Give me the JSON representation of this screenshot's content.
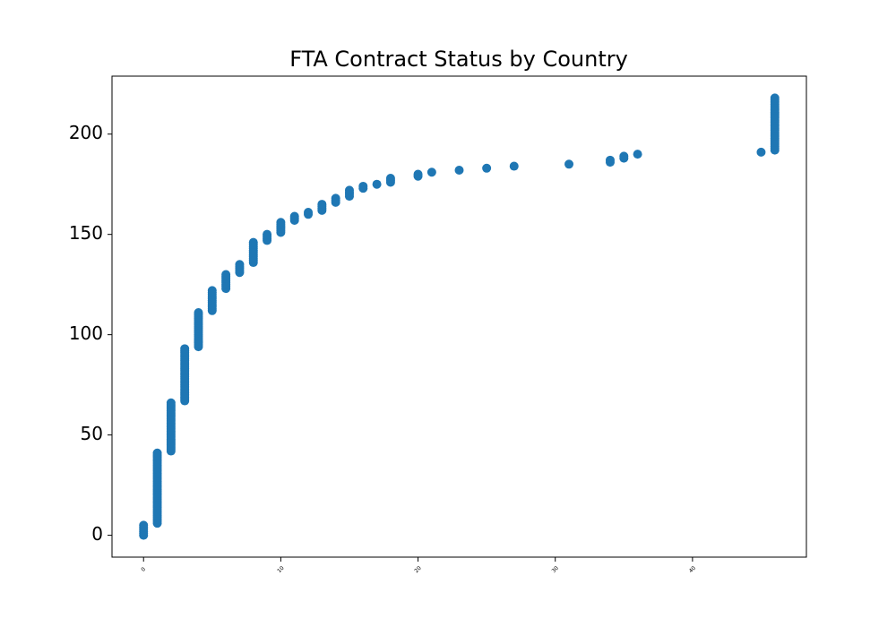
{
  "chart_data": {
    "type": "scatter",
    "title": "FTA Contract Status by Country",
    "color": "#1f77b4",
    "xlim": [
      -2.3,
      48.3
    ],
    "xticks": [
      0,
      10,
      20,
      30,
      40
    ],
    "ylim": [
      -10.9,
      228.9
    ],
    "yticks": [
      0,
      50,
      100,
      150,
      200
    ],
    "grid": false,
    "x": [
      0,
      0,
      0,
      0,
      0,
      0,
      1,
      1,
      1,
      1,
      1,
      1,
      1,
      1,
      1,
      1,
      1,
      1,
      1,
      1,
      1,
      1,
      1,
      1,
      1,
      1,
      1,
      1,
      1,
      1,
      1,
      1,
      1,
      1,
      1,
      1,
      1,
      1,
      1,
      1,
      1,
      1,
      2,
      2,
      2,
      2,
      2,
      2,
      2,
      2,
      2,
      2,
      2,
      2,
      2,
      2,
      2,
      2,
      2,
      2,
      2,
      2,
      2,
      2,
      2,
      2,
      2,
      3,
      3,
      3,
      3,
      3,
      3,
      3,
      3,
      3,
      3,
      3,
      3,
      3,
      3,
      3,
      3,
      3,
      3,
      3,
      3,
      3,
      3,
      3,
      3,
      3,
      3,
      3,
      4,
      4,
      4,
      4,
      4,
      4,
      4,
      4,
      4,
      4,
      4,
      4,
      4,
      4,
      4,
      4,
      4,
      4,
      5,
      5,
      5,
      5,
      5,
      5,
      5,
      5,
      5,
      5,
      5,
      6,
      6,
      6,
      6,
      6,
      6,
      6,
      6,
      7,
      7,
      7,
      7,
      7,
      8,
      8,
      8,
      8,
      8,
      8,
      8,
      8,
      8,
      8,
      8,
      9,
      9,
      9,
      9,
      10,
      10,
      10,
      10,
      10,
      10,
      11,
      11,
      11,
      12,
      12,
      13,
      13,
      13,
      13,
      14,
      14,
      14,
      15,
      15,
      15,
      15,
      16,
      16,
      17,
      18,
      18,
      18,
      20,
      20,
      21,
      23,
      25,
      27,
      31,
      34,
      34,
      35,
      35,
      36,
      45,
      46,
      46,
      46,
      46,
      46,
      46,
      46,
      46,
      46,
      46,
      46,
      46,
      46,
      46,
      46,
      46,
      46,
      46,
      46,
      46,
      46,
      46,
      46,
      46,
      46,
      46,
      46
    ],
    "y": [
      0,
      1,
      2,
      3,
      4,
      5,
      6,
      7,
      8,
      9,
      10,
      11,
      12,
      13,
      14,
      15,
      16,
      17,
      18,
      19,
      20,
      21,
      22,
      23,
      24,
      25,
      26,
      27,
      28,
      29,
      30,
      31,
      32,
      33,
      34,
      35,
      36,
      37,
      38,
      39,
      40,
      41,
      42,
      43,
      44,
      45,
      46,
      47,
      48,
      49,
      50,
      51,
      52,
      53,
      54,
      55,
      56,
      57,
      58,
      59,
      60,
      61,
      62,
      63,
      64,
      65,
      66,
      67,
      68,
      69,
      70,
      71,
      72,
      73,
      74,
      75,
      76,
      77,
      78,
      79,
      80,
      81,
      82,
      83,
      84,
      85,
      86,
      87,
      88,
      89,
      90,
      91,
      92,
      93,
      94,
      95,
      96,
      97,
      98,
      99,
      100,
      101,
      102,
      103,
      104,
      105,
      106,
      107,
      108,
      109,
      110,
      111,
      112,
      113,
      114,
      115,
      116,
      117,
      118,
      119,
      120,
      121,
      122,
      123,
      124,
      125,
      126,
      127,
      128,
      129,
      130,
      131,
      132,
      133,
      134,
      135,
      136,
      137,
      138,
      139,
      140,
      141,
      142,
      143,
      144,
      145,
      146,
      147,
      148,
      149,
      150,
      151,
      152,
      153,
      154,
      155,
      156,
      157,
      158,
      159,
      160,
      161,
      162,
      163,
      164,
      165,
      166,
      167,
      168,
      169,
      170,
      171,
      172,
      173,
      174,
      175,
      176,
      177,
      178,
      179,
      180,
      181,
      182,
      183,
      184,
      185,
      186,
      187,
      188,
      189,
      190,
      191,
      192,
      193,
      194,
      195,
      196,
      197,
      198,
      199,
      200,
      201,
      202,
      203,
      204,
      205,
      206,
      207,
      208,
      209,
      210,
      211,
      212,
      213,
      214,
      215,
      216,
      217,
      218
    ]
  }
}
